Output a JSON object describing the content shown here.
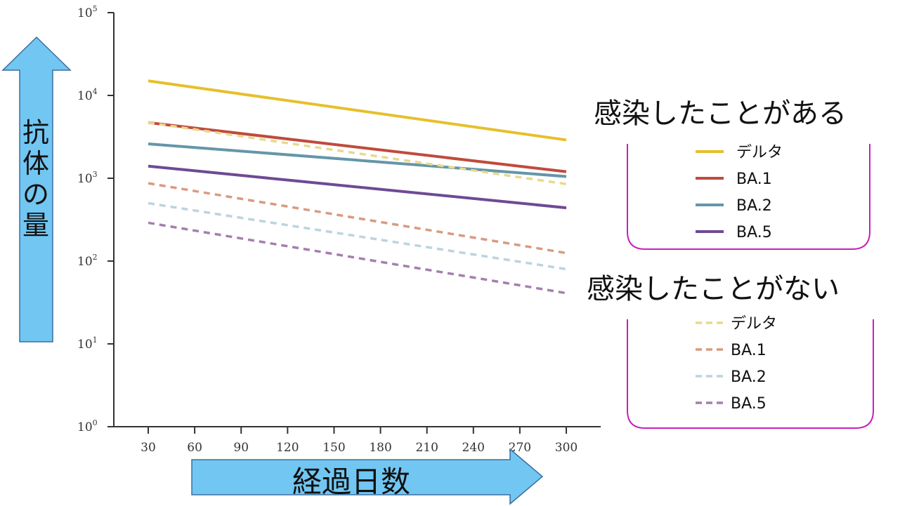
{
  "chart_data": {
    "type": "line",
    "scale_y": "log",
    "x": [
      30,
      300
    ],
    "x_ticks": [
      "30",
      "60",
      "90",
      "120",
      "150",
      "180",
      "210",
      "240",
      "270",
      "300"
    ],
    "y_ticks": [
      {
        "base": "10",
        "exp": "0",
        "value": 1
      },
      {
        "base": "10",
        "exp": "1",
        "value": 10
      },
      {
        "base": "10",
        "exp": "2",
        "value": 100
      },
      {
        "base": "10",
        "exp": "3",
        "value": 1000
      },
      {
        "base": "10",
        "exp": "4",
        "value": 10000
      },
      {
        "base": "10",
        "exp": "5",
        "value": 100000
      }
    ],
    "ylim": [
      1,
      100000
    ],
    "ylabel": "抗体の量",
    "xlabel": "経過日数",
    "groups": [
      {
        "title": "感染したことがある",
        "style": "solid",
        "series": [
          {
            "name": "デルタ",
            "color": "#e6c02c",
            "values": [
              15000,
              2900
            ]
          },
          {
            "name": "BA.1",
            "color": "#bf4b3d",
            "values": [
              4700,
              1200
            ]
          },
          {
            "name": "BA.2",
            "color": "#6496a8",
            "values": [
              2600,
              1050
            ]
          },
          {
            "name": "BA.5",
            "color": "#6e4a94",
            "values": [
              1400,
              440
            ]
          }
        ]
      },
      {
        "title": "感染したことがない",
        "style": "dashed",
        "series": [
          {
            "name": "デルタ",
            "color": "#e8d98c",
            "values": [
              4700,
              850
            ]
          },
          {
            "name": "BA.1",
            "color": "#d99a80",
            "values": [
              870,
              125
            ]
          },
          {
            "name": "BA.2",
            "color": "#bcd4de",
            "values": [
              500,
              80
            ]
          },
          {
            "name": "BA.5",
            "color": "#a47fae",
            "values": [
              290,
              41
            ]
          }
        ]
      }
    ],
    "colors": {
      "arrow_fill": "#72c6f2",
      "arrow_stroke": "#3b6e9e",
      "legend_box": "#c81fbf",
      "axis": "#333333"
    }
  }
}
